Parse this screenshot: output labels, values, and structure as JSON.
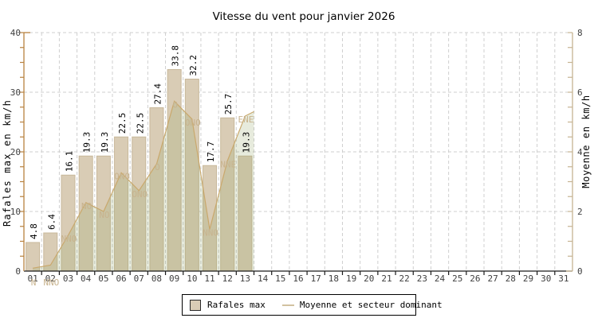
{
  "chart_data": {
    "type": "bar",
    "title": "Vitesse du vent pour janvier 2026",
    "x_categories": [
      "01",
      "02",
      "03",
      "04",
      "05",
      "06",
      "07",
      "08",
      "09",
      "10",
      "11",
      "12",
      "13",
      "14",
      "15",
      "16",
      "17",
      "18",
      "19",
      "20",
      "21",
      "22",
      "23",
      "24",
      "25",
      "26",
      "27",
      "28",
      "29",
      "30",
      "31"
    ],
    "y_left": {
      "label": "Rafales max en km/h",
      "range": [
        0,
        40
      ],
      "major_ticks": [
        0,
        10,
        20,
        30,
        40
      ],
      "minor_step": 2.5
    },
    "y_right": {
      "label": "Moyenne en km/h",
      "range": [
        0,
        8
      ],
      "major_ticks": [
        0,
        2,
        4,
        6,
        8
      ],
      "minor_step": 0.5
    },
    "grid": "dashed",
    "series": [
      {
        "name": "Rafales max",
        "type": "bar",
        "axis": "left",
        "values": [
          4.8,
          6.4,
          16.1,
          19.3,
          19.3,
          22.5,
          22.5,
          27.4,
          33.8,
          32.2,
          17.7,
          25.7,
          19.3
        ]
      },
      {
        "name": "Moyenne",
        "type": "area-line",
        "axis": "right",
        "values": [
          0.1,
          0.2,
          1.2,
          2.3,
          2.0,
          3.3,
          2.7,
          3.6,
          5.7,
          5.1,
          1.4,
          3.7,
          5.2
        ],
        "edge_value": 5.35
      },
      {
        "name": "Secteur dominant",
        "type": "point-labels",
        "values": [
          "N",
          "NNO",
          "NNO",
          "NO",
          "NO",
          "ONO",
          "ONO",
          "O",
          "O",
          "ONO",
          "NNO",
          "NNE",
          "ENE"
        ]
      }
    ],
    "legend": [
      {
        "label": "Rafales max",
        "swatch": "box"
      },
      {
        "label": "Moyenne et secteur dominant",
        "swatch": "line"
      }
    ],
    "colors": {
      "bar_fill": "#d9ccb5",
      "bar_stroke": "#c8b89a",
      "area_fill_rgba": "145,165,100,0.22",
      "line": "#c9a86c",
      "grid": "#cfcfcf",
      "axis_left": "#b8823f",
      "axis_left_label": "#c08a4a",
      "axis_right": "#c6b493",
      "axis_right_label": "#c3b497",
      "axis_bottom": "#1a1a1a",
      "tick_text": "#3f3f3f",
      "value_text": "#000000",
      "direction_text": "#c8b38e",
      "title": "#3b3b5e"
    }
  }
}
